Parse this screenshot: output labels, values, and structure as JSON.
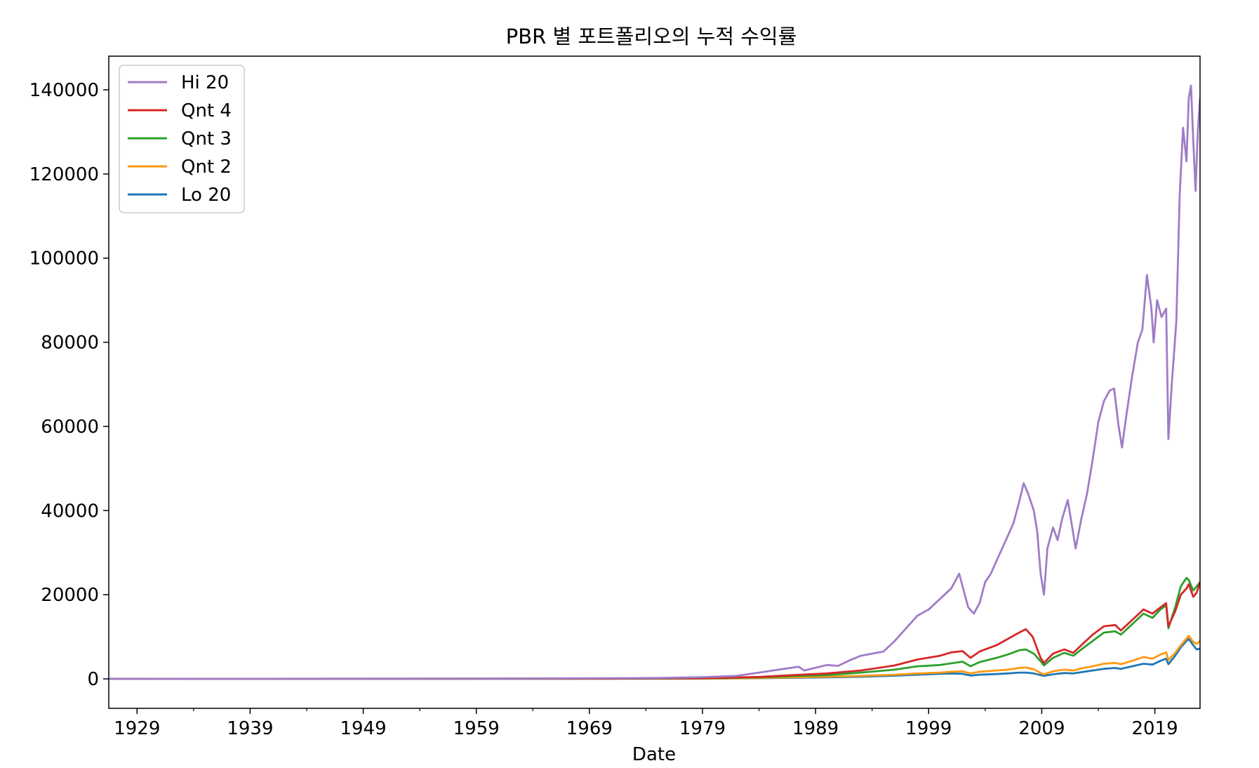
{
  "chart_data": {
    "type": "line",
    "title": "PBR 별 포트폴리오의 누적 수익률",
    "xlabel": "Date",
    "ylabel": "",
    "xlim": [
      1926.5,
      2023.0
    ],
    "ylim": [
      -7000,
      148000
    ],
    "x_ticks": [
      1929,
      1939,
      1949,
      1959,
      1969,
      1979,
      1989,
      1999,
      2009,
      2019
    ],
    "y_ticks": [
      0,
      20000,
      40000,
      60000,
      80000,
      100000,
      120000,
      140000
    ],
    "legend_position": "upper-left",
    "grid": false,
    "series": [
      {
        "name": "Hi 20",
        "color": "#a07cc6",
        "points": [
          [
            1926.5,
            0
          ],
          [
            1960,
            60
          ],
          [
            1970,
            150
          ],
          [
            1975,
            200
          ],
          [
            1979,
            400
          ],
          [
            1982,
            700
          ],
          [
            1984,
            1500
          ],
          [
            1986,
            2300
          ],
          [
            1987.5,
            2900
          ],
          [
            1988,
            2000
          ],
          [
            1990,
            3300
          ],
          [
            1991,
            3100
          ],
          [
            1992,
            4400
          ],
          [
            1993,
            5500
          ],
          [
            1994,
            6000
          ],
          [
            1995,
            6500
          ],
          [
            1996,
            9000
          ],
          [
            1997,
            12000
          ],
          [
            1998,
            15000
          ],
          [
            1999,
            16500
          ],
          [
            2000,
            19000
          ],
          [
            2001,
            21500
          ],
          [
            2001.7,
            25000
          ],
          [
            2002,
            22000
          ],
          [
            2002.5,
            17000
          ],
          [
            2003,
            15500
          ],
          [
            2003.5,
            18000
          ],
          [
            2004,
            23000
          ],
          [
            2004.5,
            25000
          ],
          [
            2005,
            28000
          ],
          [
            2005.5,
            31000
          ],
          [
            2006,
            34000
          ],
          [
            2006.5,
            37000
          ],
          [
            2007,
            42000
          ],
          [
            2007.4,
            46500
          ],
          [
            2007.8,
            44000
          ],
          [
            2008.3,
            40000
          ],
          [
            2008.6,
            35000
          ],
          [
            2008.9,
            25000
          ],
          [
            2009.2,
            20000
          ],
          [
            2009.5,
            31000
          ],
          [
            2010,
            36000
          ],
          [
            2010.4,
            33000
          ],
          [
            2010.8,
            38000
          ],
          [
            2011.3,
            42500
          ],
          [
            2011.7,
            36000
          ],
          [
            2012,
            31000
          ],
          [
            2012.5,
            38000
          ],
          [
            2013,
            44000
          ],
          [
            2013.5,
            52000
          ],
          [
            2014,
            61000
          ],
          [
            2014.5,
            66000
          ],
          [
            2015,
            68500
          ],
          [
            2015.4,
            69000
          ],
          [
            2015.8,
            60000
          ],
          [
            2016.1,
            55000
          ],
          [
            2016.5,
            63000
          ],
          [
            2017,
            72000
          ],
          [
            2017.5,
            80000
          ],
          [
            2017.9,
            83000
          ],
          [
            2018.3,
            96000
          ],
          [
            2018.7,
            88000
          ],
          [
            2018.9,
            80000
          ],
          [
            2019.2,
            90000
          ],
          [
            2019.6,
            86000
          ],
          [
            2020,
            88000
          ],
          [
            2020.2,
            57000
          ],
          [
            2020.5,
            70000
          ],
          [
            2020.9,
            85000
          ],
          [
            2021.2,
            115000
          ],
          [
            2021.5,
            131000
          ],
          [
            2021.8,
            123000
          ],
          [
            2022,
            138000
          ],
          [
            2022.2,
            141000
          ],
          [
            2022.4,
            128000
          ],
          [
            2022.6,
            116000
          ],
          [
            2022.8,
            130000
          ],
          [
            2023,
            138000
          ]
        ]
      },
      {
        "name": "Qnt 4",
        "color": "#d62728",
        "points": [
          [
            1926.5,
            0
          ],
          [
            1970,
            80
          ],
          [
            1979,
            150
          ],
          [
            1984,
            450
          ],
          [
            1987,
            900
          ],
          [
            1990,
            1300
          ],
          [
            1993,
            2000
          ],
          [
            1996,
            3200
          ],
          [
            1998,
            4600
          ],
          [
            2000,
            5500
          ],
          [
            2001,
            6300
          ],
          [
            2002,
            6600
          ],
          [
            2002.7,
            5000
          ],
          [
            2003.5,
            6500
          ],
          [
            2005,
            8000
          ],
          [
            2006,
            9500
          ],
          [
            2007,
            11000
          ],
          [
            2007.6,
            11800
          ],
          [
            2008.2,
            10000
          ],
          [
            2008.9,
            5000
          ],
          [
            2009.2,
            3800
          ],
          [
            2010,
            6000
          ],
          [
            2011,
            7000
          ],
          [
            2011.8,
            6200
          ],
          [
            2012.5,
            8000
          ],
          [
            2013.5,
            10500
          ],
          [
            2014.5,
            12500
          ],
          [
            2015.5,
            12800
          ],
          [
            2016,
            11500
          ],
          [
            2017,
            14000
          ],
          [
            2018,
            16500
          ],
          [
            2018.8,
            15500
          ],
          [
            2019.5,
            17000
          ],
          [
            2020,
            18000
          ],
          [
            2020.2,
            12500
          ],
          [
            2020.8,
            16000
          ],
          [
            2021.3,
            20000
          ],
          [
            2021.8,
            21500
          ],
          [
            2022,
            22500
          ],
          [
            2022.4,
            19500
          ],
          [
            2022.7,
            20500
          ],
          [
            2023,
            23000
          ]
        ]
      },
      {
        "name": "Qnt 3",
        "color": "#2ca02c",
        "points": [
          [
            1926.5,
            0
          ],
          [
            1970,
            60
          ],
          [
            1979,
            120
          ],
          [
            1984,
            350
          ],
          [
            1987,
            650
          ],
          [
            1990,
            900
          ],
          [
            1993,
            1500
          ],
          [
            1996,
            2200
          ],
          [
            1998,
            3000
          ],
          [
            2000,
            3300
          ],
          [
            2001,
            3700
          ],
          [
            2002,
            4100
          ],
          [
            2002.7,
            3000
          ],
          [
            2003.5,
            4000
          ],
          [
            2005,
            5000
          ],
          [
            2006,
            5800
          ],
          [
            2007,
            6800
          ],
          [
            2007.6,
            7000
          ],
          [
            2008.3,
            6000
          ],
          [
            2008.9,
            4200
          ],
          [
            2009.2,
            3200
          ],
          [
            2010,
            5000
          ],
          [
            2011,
            6200
          ],
          [
            2011.8,
            5500
          ],
          [
            2012.5,
            7000
          ],
          [
            2013.5,
            9000
          ],
          [
            2014.5,
            11000
          ],
          [
            2015.5,
            11300
          ],
          [
            2016,
            10500
          ],
          [
            2017,
            13000
          ],
          [
            2018,
            15500
          ],
          [
            2018.8,
            14500
          ],
          [
            2019.5,
            16500
          ],
          [
            2020,
            17500
          ],
          [
            2020.2,
            12000
          ],
          [
            2020.8,
            17000
          ],
          [
            2021.3,
            22000
          ],
          [
            2021.8,
            24000
          ],
          [
            2022,
            23500
          ],
          [
            2022.4,
            21000
          ],
          [
            2022.7,
            22000
          ],
          [
            2023,
            23000
          ]
        ]
      },
      {
        "name": "Qnt 2",
        "color": "#ff9912",
        "points": [
          [
            1926.5,
            0
          ],
          [
            1970,
            40
          ],
          [
            1979,
            80
          ],
          [
            1984,
            200
          ],
          [
            1987,
            350
          ],
          [
            1990,
            500
          ],
          [
            1993,
            700
          ],
          [
            1996,
            1000
          ],
          [
            1998,
            1300
          ],
          [
            2000,
            1500
          ],
          [
            2001,
            1700
          ],
          [
            2002,
            1800
          ],
          [
            2002.7,
            1300
          ],
          [
            2003.5,
            1700
          ],
          [
            2005,
            2000
          ],
          [
            2006,
            2200
          ],
          [
            2007,
            2600
          ],
          [
            2007.6,
            2700
          ],
          [
            2008.3,
            2300
          ],
          [
            2008.9,
            1400
          ],
          [
            2009.2,
            1100
          ],
          [
            2010,
            1800
          ],
          [
            2011,
            2200
          ],
          [
            2011.8,
            2000
          ],
          [
            2012.5,
            2500
          ],
          [
            2013.5,
            3000
          ],
          [
            2014.5,
            3600
          ],
          [
            2015.5,
            3800
          ],
          [
            2016,
            3500
          ],
          [
            2017,
            4300
          ],
          [
            2018,
            5200
          ],
          [
            2018.8,
            4800
          ],
          [
            2019.5,
            5800
          ],
          [
            2020,
            6300
          ],
          [
            2020.2,
            4500
          ],
          [
            2020.8,
            6200
          ],
          [
            2021.3,
            8000
          ],
          [
            2021.8,
            9600
          ],
          [
            2022,
            10200
          ],
          [
            2022.4,
            8800
          ],
          [
            2022.7,
            8300
          ],
          [
            2023,
            9000
          ]
        ]
      },
      {
        "name": "Lo 20",
        "color": "#1f77b4",
        "points": [
          [
            1926.5,
            0
          ],
          [
            1970,
            30
          ],
          [
            1979,
            60
          ],
          [
            1984,
            150
          ],
          [
            1987,
            250
          ],
          [
            1990,
            350
          ],
          [
            1993,
            500
          ],
          [
            1996,
            750
          ],
          [
            1998,
            1000
          ],
          [
            2000,
            1200
          ],
          [
            2001,
            1300
          ],
          [
            2002,
            1200
          ],
          [
            2002.7,
            800
          ],
          [
            2003.5,
            1000
          ],
          [
            2005,
            1150
          ],
          [
            2006,
            1300
          ],
          [
            2007,
            1500
          ],
          [
            2007.6,
            1500
          ],
          [
            2008.3,
            1300
          ],
          [
            2008.9,
            900
          ],
          [
            2009.2,
            700
          ],
          [
            2010,
            1100
          ],
          [
            2011,
            1400
          ],
          [
            2011.8,
            1300
          ],
          [
            2012.5,
            1600
          ],
          [
            2013.5,
            2000
          ],
          [
            2014.5,
            2400
          ],
          [
            2015.5,
            2600
          ],
          [
            2016,
            2400
          ],
          [
            2017,
            3000
          ],
          [
            2018,
            3600
          ],
          [
            2018.8,
            3400
          ],
          [
            2019.5,
            4300
          ],
          [
            2020,
            4800
          ],
          [
            2020.2,
            3500
          ],
          [
            2020.8,
            5500
          ],
          [
            2021.3,
            7500
          ],
          [
            2021.8,
            9000
          ],
          [
            2022,
            9500
          ],
          [
            2022.4,
            8000
          ],
          [
            2022.7,
            7000
          ],
          [
            2023,
            7200
          ]
        ]
      }
    ]
  }
}
